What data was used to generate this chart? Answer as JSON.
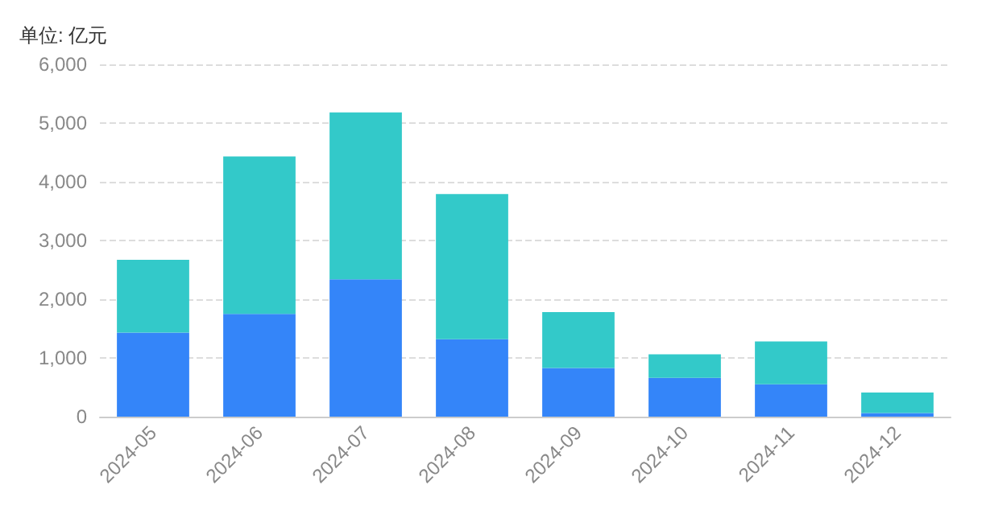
{
  "chart_data": {
    "type": "bar",
    "stacked": true,
    "ylabel": "单位: 亿元",
    "categories": [
      "2024-05",
      "2024-06",
      "2024-07",
      "2024-08",
      "2024-09",
      "2024-10",
      "2024-11",
      "2024-12"
    ],
    "series": [
      {
        "color": "#3485f9",
        "values": [
          1430,
          1750,
          2340,
          1320,
          830,
          660,
          550,
          60
        ]
      },
      {
        "color": "#33c9c9",
        "values": [
          1240,
          2680,
          2840,
          2470,
          950,
          400,
          730,
          350
        ]
      }
    ],
    "ylim": [
      0,
      6000
    ],
    "yticks": [
      0,
      {
        "value": 1000,
        "label": "1,000"
      },
      {
        "value": 2000,
        "label": "2,000"
      },
      {
        "value": 3000,
        "label": "3,000"
      },
      {
        "value": 4000,
        "label": "4,000"
      },
      {
        "value": 5000,
        "label": "5,000"
      },
      {
        "value": 6000,
        "label": "6,000"
      }
    ],
    "grid": "y"
  }
}
